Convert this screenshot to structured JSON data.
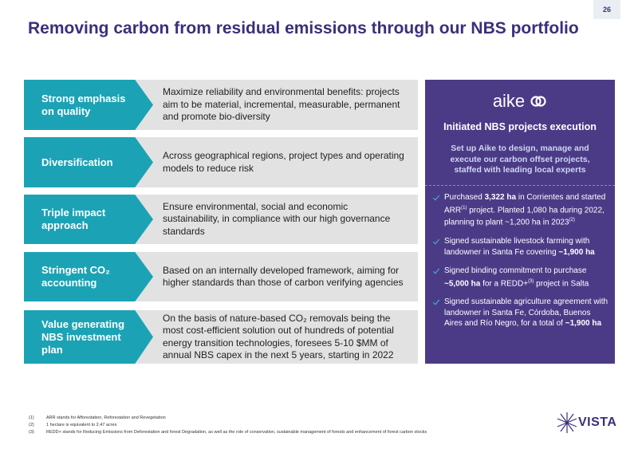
{
  "page_number": "26",
  "title": "Removing carbon from residual emissions through our NBS portfolio",
  "rows": [
    {
      "label": "Strong emphasis on quality",
      "text": [
        {
          "text": "Maximize reliability and environmental benefits: projects aim to be material, incremental, measurable, permanent and promote bio-diversity"
        }
      ]
    },
    {
      "label": "Diversification",
      "text": [
        {
          "text": "Across geographical regions, project types and operating models to reduce risk"
        }
      ]
    },
    {
      "label": "Triple impact approach",
      "text": [
        {
          "text": "Ensure environmental, social and economic sustainability, in compliance with our high governance standards"
        }
      ]
    },
    {
      "label": "Stringent CO₂ accounting",
      "text": [
        {
          "text": "Based on an internally developed framework, aiming for higher standards than those of carbon verifying agencies"
        }
      ]
    },
    {
      "label": "Value generating NBS investment plan",
      "text": [
        {
          "text": "On the basis of nature-based CO₂ removals being the most cost-efficient solution out of hundreds of potential energy transition technologies, foresees 5-10 $MM of annual NBS capex in the next 5 years, starting in 2022"
        }
      ]
    }
  ],
  "panel": {
    "logo": "aike",
    "heading": "Initiated NBS projects execution",
    "subheading": "Set up Aike to design, manage and execute our carbon offset projects, staffed with leading local experts",
    "bullets": [
      [
        {
          "text": "Purchased "
        },
        {
          "text": "3,322 ha",
          "style": "bold"
        },
        {
          "text": " in Corrientes and started ARR"
        },
        {
          "text": "(1)",
          "style": "sup"
        },
        {
          "text": " project. Planted 1,080 ha during 2022, planning to plant ~1,200 ha in 2023"
        },
        {
          "text": "(2)",
          "style": "sup"
        }
      ],
      [
        {
          "text": "Signed sustainable livestock farming with landowner in Santa Fe covering "
        },
        {
          "text": "~1,900 ha",
          "style": "bold"
        }
      ],
      [
        {
          "text": "Signed binding commitment to purchase "
        },
        {
          "text": "~5,000 ha",
          "style": "bold"
        },
        {
          "text": " for a REDD+"
        },
        {
          "text": "(3)",
          "style": "sup"
        },
        {
          "text": " project in Salta"
        }
      ],
      [
        {
          "text": "Signed sustainable agriculture agreement with landowner in Santa Fe, Córdoba, Buenos Aires and Río Negro, for a total of "
        },
        {
          "text": "~1,900 ha",
          "style": "bold"
        }
      ]
    ]
  },
  "footnotes": [
    {
      "marker": "(1)",
      "text": "ARR stands for Afforestation, Reforestation and Revegetation"
    },
    {
      "marker": "(2)",
      "text": "1 hectare is equivalent to 2.47 acres"
    },
    {
      "marker": "(3)",
      "text": "REDD+ stands for Reducing Emissions from Deforestation and forest Degradation, as well as the role of conservation, sustainable management of forests and enhancement of forest carbon stocks"
    }
  ],
  "logo": "VISTA"
}
